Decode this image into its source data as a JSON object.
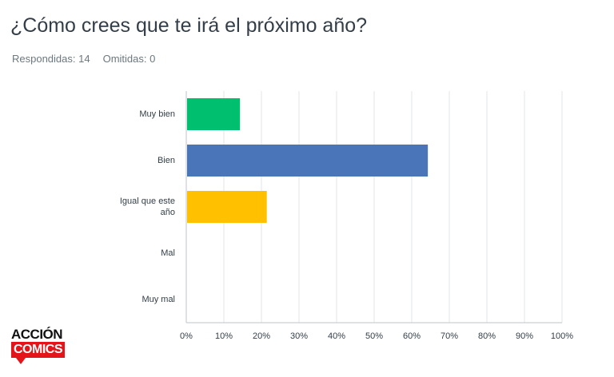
{
  "question": {
    "title": "¿Cómo crees que te irá el próximo año?",
    "answered": "Respondidas: 14",
    "skipped": "Omitidas: 0"
  },
  "logo": {
    "line1": "ACCIÓN",
    "line2": "COMICS",
    "color": "#e3151a"
  },
  "chart_data": {
    "type": "bar",
    "orientation": "horizontal",
    "categories": [
      "Muy bien",
      "Bien",
      "Igual que este año",
      "Mal",
      "Muy mal"
    ],
    "category_lines": [
      [
        "Muy bien"
      ],
      [
        "Bien"
      ],
      [
        "Igual que este",
        "año"
      ],
      [
        "Mal"
      ],
      [
        "Muy mal"
      ]
    ],
    "values": [
      14.29,
      64.29,
      21.43,
      0,
      0
    ],
    "colors": [
      "#00bf6f",
      "#4a76b9",
      "#ffc000",
      "#00bf6f",
      "#4a76b9"
    ],
    "xlim": [
      0,
      100
    ],
    "x_ticks": [
      "0%",
      "10%",
      "20%",
      "30%",
      "40%",
      "50%",
      "60%",
      "70%",
      "80%",
      "90%",
      "100%"
    ],
    "grid": true,
    "legend": "none"
  }
}
